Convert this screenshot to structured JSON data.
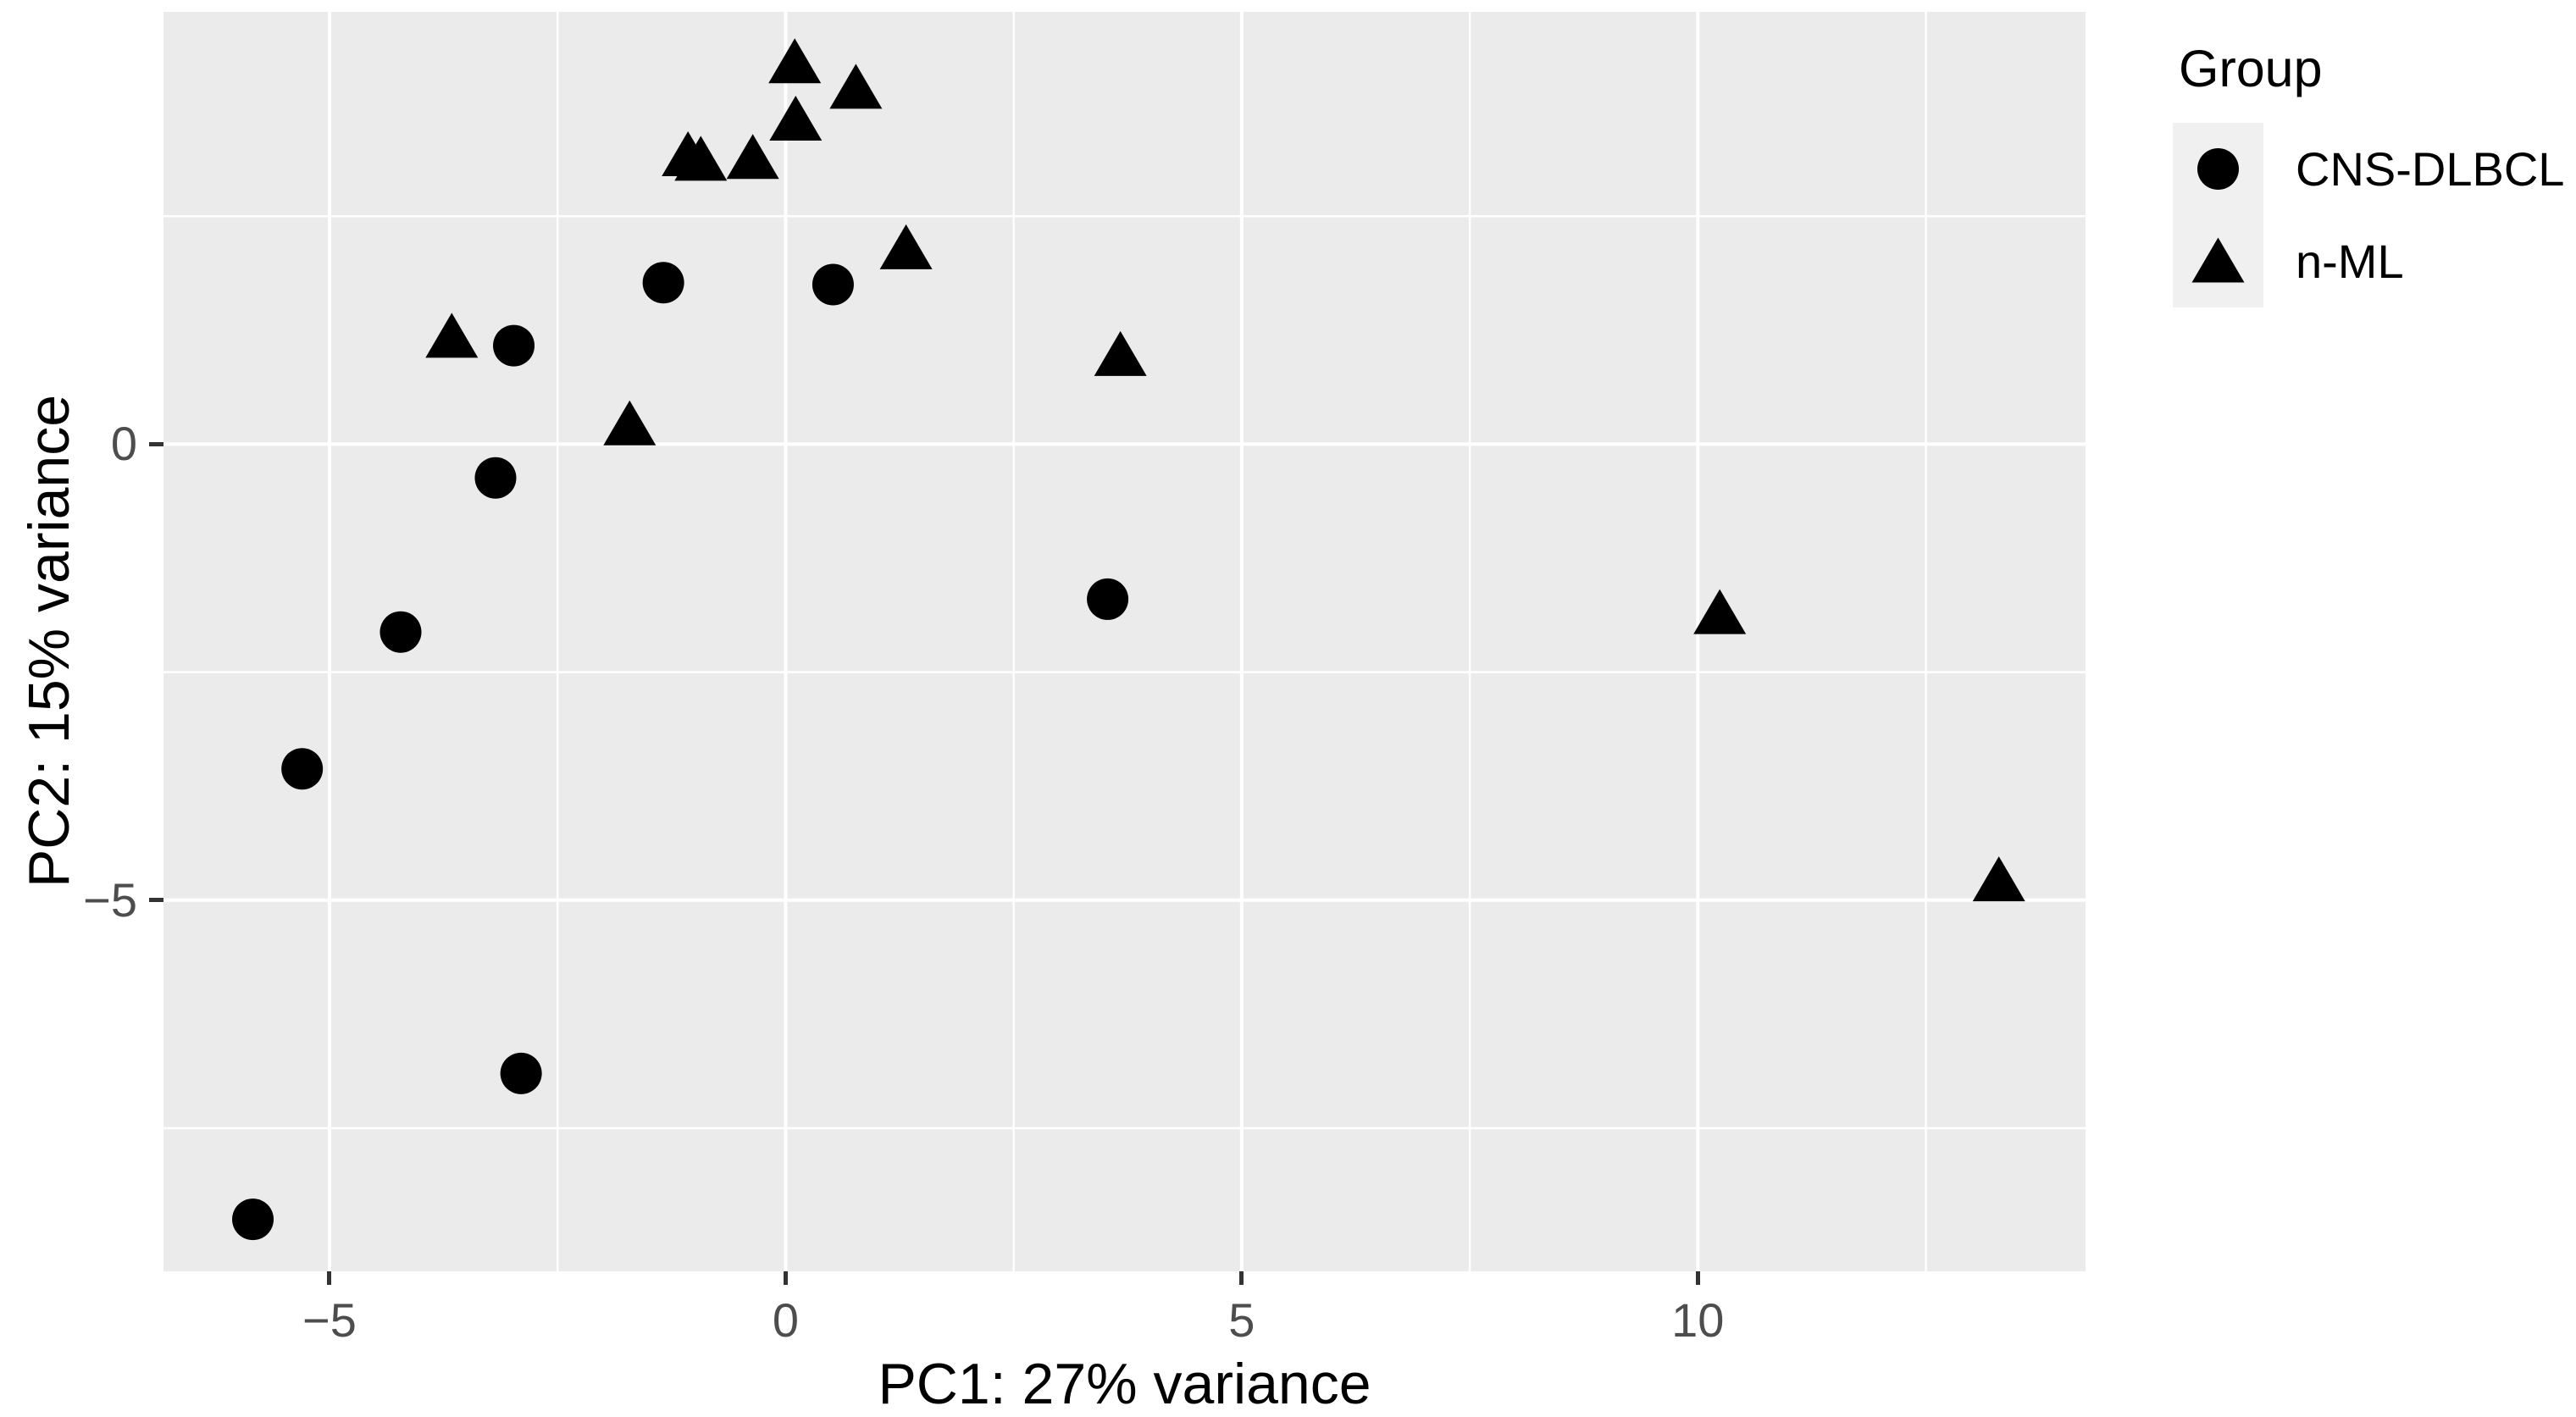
{
  "chart_data": {
    "type": "scatter",
    "title": "",
    "xlabel": "PC1: 27% variance",
    "ylabel": "PC2: 15% variance",
    "xlim": [
      -6.82,
      14.25
    ],
    "ylim": [
      -9.07,
      4.74
    ],
    "grid": "on",
    "x_major_ticks": [
      {
        "value": -5,
        "label": "−5"
      },
      {
        "value": 0,
        "label": "0"
      },
      {
        "value": 5,
        "label": "5"
      },
      {
        "value": 10,
        "label": "10"
      }
    ],
    "x_minor_ticks": [
      -2.5,
      2.5,
      7.5,
      12.5
    ],
    "y_major_ticks": [
      {
        "value": 0,
        "label": "0"
      },
      {
        "value": -5,
        "label": "−5"
      }
    ],
    "y_minor_ticks": [
      2.5,
      -2.5,
      -7.5
    ],
    "legend": {
      "title": "Group",
      "position": "right",
      "entries": [
        {
          "label": "CNS-DLBCL",
          "marker": "circle"
        },
        {
          "label": "n-ML",
          "marker": "triangle"
        }
      ]
    },
    "series": [
      {
        "name": "CNS-DLBCL",
        "marker": "circle",
        "points": [
          [
            -5.84,
            -8.5
          ],
          [
            -5.3,
            -3.56
          ],
          [
            -4.22,
            -2.06
          ],
          [
            -3.18,
            -0.37
          ],
          [
            -2.98,
            1.08
          ],
          [
            -2.9,
            -6.9
          ],
          [
            -1.34,
            1.77
          ],
          [
            0.52,
            1.75
          ],
          [
            3.53,
            -1.7
          ]
        ]
      },
      {
        "name": "n-ML",
        "marker": "triangle",
        "points": [
          [
            -3.66,
            1.18
          ],
          [
            -1.71,
            0.22
          ],
          [
            -1.07,
            3.17
          ],
          [
            -0.93,
            3.12
          ],
          [
            -0.36,
            3.14
          ],
          [
            0.1,
            4.19
          ],
          [
            0.11,
            3.56
          ],
          [
            0.77,
            3.91
          ],
          [
            1.32,
            2.15
          ],
          [
            3.67,
            0.98
          ],
          [
            10.24,
            -1.85
          ],
          [
            13.3,
            -4.78
          ]
        ]
      }
    ],
    "style": {
      "panel_bg": "#EBEBEB",
      "grid_color": "#FFFFFF",
      "marker_color": "#000000",
      "tick_mark_color": "#333333",
      "tick_label_color": "#4D4D4D",
      "axis_title_color": "#000000",
      "legend_key_bg": "#F0F0F0",
      "page_bg": "#FFFFFF"
    }
  }
}
